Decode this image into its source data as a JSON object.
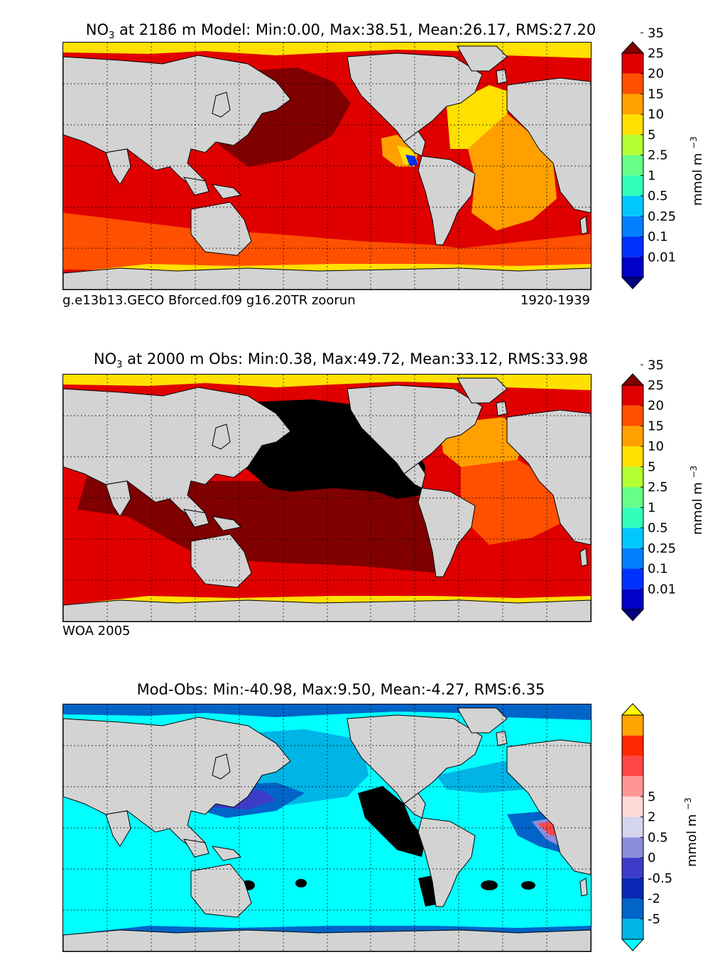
{
  "panels": [
    {
      "title_prefix": "NO",
      "title_sub": "3",
      "title_rest": " at 2186 m Model: Min:0.00, Max:38.51, Mean:26.17, RMS:27.20",
      "caption_left": "g.e13b13.GECO Bforced.f09 g16.20TR zoorun",
      "caption_right": "1920-1939"
    },
    {
      "title_prefix": "NO",
      "title_sub": "3",
      "title_rest": " at 2000 m Obs: Min:0.38, Max:49.72, Mean:33.12, RMS:33.98",
      "caption_left": "WOA 2005",
      "caption_right": ""
    },
    {
      "title_prefix": "",
      "title_sub": "",
      "title_rest": "Mod-Obs: Min:-40.98, Max:9.50, Mean:-4.27, RMS:6.35",
      "caption_left": "",
      "caption_right": ""
    }
  ],
  "colorbar_units": "mmol m",
  "colorbar_units_sup": "−3",
  "conc_colorbar": {
    "levels": [
      "0.01",
      "0.1",
      "0.25",
      "0.5",
      "1",
      "2.5",
      "5",
      "10",
      "15",
      "20",
      "25",
      "35"
    ],
    "colors": [
      "#000080",
      "#0000c8",
      "#0032ff",
      "#0080ff",
      "#00c8ff",
      "#33ffbb",
      "#66ff88",
      "#b4ff32",
      "#ffe000",
      "#ffa000",
      "#ff5000",
      "#e00000",
      "#800000"
    ]
  },
  "diff_colorbar": {
    "levels": [
      "-5",
      "-2",
      "-0.5",
      "0",
      "0.5",
      "2",
      "5"
    ],
    "colors": [
      "#00ffff",
      "#00b4e6",
      "#0064c8",
      "#0a28b4",
      "#3c3cc8",
      "#8c8cdc",
      "#d4d4f0",
      "#ffd8d8",
      "#ff9696",
      "#ff4646",
      "#ff2800",
      "#ffa500",
      "#ffff00"
    ]
  },
  "chart_data": [
    {
      "type": "heatmap",
      "title": "NO3 at 2186 m Model: Min:0.00, Max:38.51, Mean:26.17, RMS:27.20",
      "variable": "NO3",
      "depth_m": 2186,
      "stats": {
        "min": 0.0,
        "max": 38.51,
        "mean": 26.17,
        "rms": 27.2
      },
      "xlim": [
        30,
        390
      ],
      "ylim": [
        -80,
        90
      ],
      "units": "mmol m-3",
      "colorbar_levels": [
        0.01,
        0.1,
        0.25,
        0.5,
        1,
        2.5,
        5,
        10,
        15,
        20,
        25,
        35
      ]
    },
    {
      "type": "heatmap",
      "title": "NO3 at 2000 m Obs: Min:0.38, Max:49.72, Mean:33.12, RMS:33.98",
      "variable": "NO3",
      "depth_m": 2000,
      "stats": {
        "min": 0.38,
        "max": 49.72,
        "mean": 33.12,
        "rms": 33.98
      },
      "xlim": [
        30,
        390
      ],
      "ylim": [
        -80,
        90
      ],
      "units": "mmol m-3",
      "colorbar_levels": [
        0.01,
        0.1,
        0.25,
        0.5,
        1,
        2.5,
        5,
        10,
        15,
        20,
        25,
        35
      ]
    },
    {
      "type": "heatmap",
      "title": "Mod-Obs: Min:-40.98, Max:9.50, Mean:-4.27, RMS:6.35",
      "variable": "NO3 difference",
      "stats": {
        "min": -40.98,
        "max": 9.5,
        "mean": -4.27,
        "rms": 6.35
      },
      "xlim": [
        30,
        390
      ],
      "ylim": [
        -80,
        90
      ],
      "units": "mmol m-3",
      "colorbar_levels": [
        -5,
        -2,
        -0.5,
        0,
        0.5,
        2,
        5
      ]
    }
  ]
}
